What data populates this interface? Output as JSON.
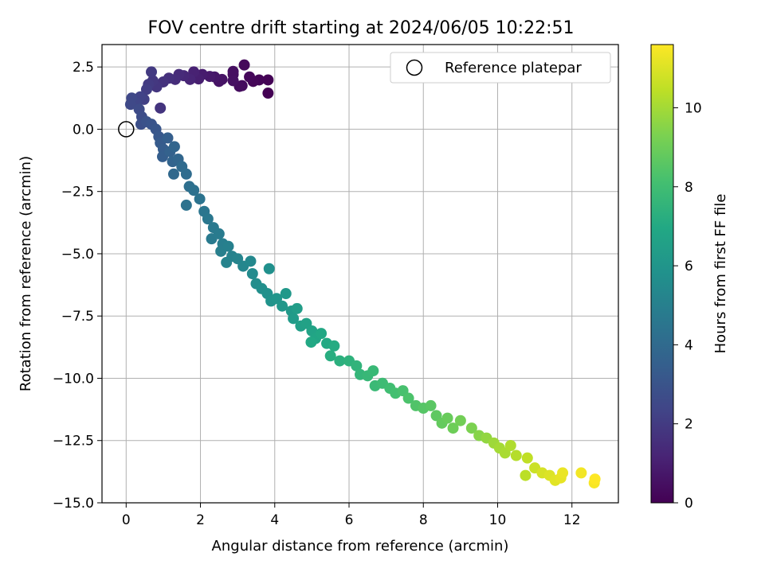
{
  "chart_data": {
    "type": "scatter",
    "title": "FOV centre drift starting at 2024/06/05 10:22:51",
    "xlabel": "Angular distance from reference (arcmin)",
    "ylabel": "Rotation from reference (arcmin)",
    "xlim": [
      -0.65,
      13.25
    ],
    "ylim": [
      -15.0,
      3.4
    ],
    "xticks": [
      0,
      2,
      4,
      6,
      8,
      10,
      12
    ],
    "yticks": [
      2.5,
      0.0,
      -2.5,
      -5.0,
      -7.5,
      -10.0,
      -12.5,
      -15.0
    ],
    "xtick_labels": [
      "0",
      "2",
      "4",
      "6",
      "8",
      "10",
      "12"
    ],
    "ytick_labels": [
      "2.5",
      "0.0",
      "−2.5",
      "−5.0",
      "−7.5",
      "−10.0",
      "−12.5",
      "−15.0"
    ],
    "grid": true,
    "legend": {
      "label": "Reference platepar",
      "placement": "top-right"
    },
    "reference_point": {
      "x": 0.0,
      "y": 0.0
    },
    "colorbar": {
      "label": "Hours from first FF file",
      "colormap": "viridis",
      "range": [
        0,
        11.6
      ],
      "ticks": [
        0,
        2,
        4,
        6,
        8,
        10
      ],
      "tick_labels": [
        "0",
        "2",
        "4",
        "6",
        "8",
        "10"
      ]
    },
    "series": [
      {
        "points": [
          {
            "x": 3.82,
            "y": 1.45,
            "t": 0.0
          },
          {
            "x": 3.82,
            "y": 1.98,
            "t": 0.05
          },
          {
            "x": 3.58,
            "y": 1.98,
            "t": 0.1
          },
          {
            "x": 3.42,
            "y": 1.92,
            "t": 0.15
          },
          {
            "x": 3.32,
            "y": 2.1,
            "t": 0.2
          },
          {
            "x": 3.18,
            "y": 2.58,
            "t": 0.25
          },
          {
            "x": 3.12,
            "y": 1.75,
            "t": 0.3
          },
          {
            "x": 3.05,
            "y": 1.72,
            "t": 0.35
          },
          {
            "x": 2.88,
            "y": 2.2,
            "t": 0.4
          },
          {
            "x": 2.88,
            "y": 2.32,
            "t": 0.45
          },
          {
            "x": 2.88,
            "y": 1.95,
            "t": 0.5
          },
          {
            "x": 2.58,
            "y": 2.0,
            "t": 0.55
          },
          {
            "x": 2.5,
            "y": 1.92,
            "t": 0.6
          },
          {
            "x": 2.38,
            "y": 2.1,
            "t": 0.7
          },
          {
            "x": 2.25,
            "y": 2.12,
            "t": 0.8
          },
          {
            "x": 2.05,
            "y": 2.2,
            "t": 0.9
          },
          {
            "x": 1.95,
            "y": 2.02,
            "t": 1.0
          },
          {
            "x": 1.82,
            "y": 2.3,
            "t": 1.1
          },
          {
            "x": 1.72,
            "y": 2.0,
            "t": 1.2
          },
          {
            "x": 1.55,
            "y": 2.15,
            "t": 1.3
          },
          {
            "x": 1.42,
            "y": 2.2,
            "t": 1.4
          },
          {
            "x": 1.32,
            "y": 2.0,
            "t": 1.5
          },
          {
            "x": 1.15,
            "y": 2.05,
            "t": 1.6
          },
          {
            "x": 1.0,
            "y": 1.9,
            "t": 1.7
          },
          {
            "x": 0.92,
            "y": 0.85,
            "t": 1.75
          },
          {
            "x": 0.82,
            "y": 1.7,
            "t": 1.8
          },
          {
            "x": 0.72,
            "y": 1.95,
            "t": 1.9
          },
          {
            "x": 0.68,
            "y": 2.3,
            "t": 1.95
          },
          {
            "x": 0.6,
            "y": 1.8,
            "t": 2.0
          },
          {
            "x": 0.55,
            "y": 1.6,
            "t": 2.1
          },
          {
            "x": 0.48,
            "y": 1.2,
            "t": 2.2
          },
          {
            "x": 0.38,
            "y": 1.3,
            "t": 2.3
          },
          {
            "x": 0.28,
            "y": 1.05,
            "t": 2.4
          },
          {
            "x": 0.15,
            "y": 1.25,
            "t": 2.5
          },
          {
            "x": 0.12,
            "y": 1.0,
            "t": 2.55
          },
          {
            "x": 0.35,
            "y": 0.8,
            "t": 2.6
          },
          {
            "x": 0.42,
            "y": 0.5,
            "t": 2.7
          },
          {
            "x": 0.4,
            "y": 0.2,
            "t": 2.8
          },
          {
            "x": 0.55,
            "y": 0.3,
            "t": 2.9
          },
          {
            "x": 0.68,
            "y": 0.2,
            "t": 3.0
          },
          {
            "x": 0.8,
            "y": 0.0,
            "t": 3.1
          },
          {
            "x": 0.88,
            "y": -0.3,
            "t": 3.2
          },
          {
            "x": 0.92,
            "y": -0.55,
            "t": 3.3
          },
          {
            "x": 1.0,
            "y": -0.8,
            "t": 3.4
          },
          {
            "x": 0.98,
            "y": -1.1,
            "t": 3.45
          },
          {
            "x": 1.12,
            "y": -0.35,
            "t": 3.5
          },
          {
            "x": 1.18,
            "y": -0.9,
            "t": 3.6
          },
          {
            "x": 1.25,
            "y": -1.3,
            "t": 3.7
          },
          {
            "x": 1.3,
            "y": -0.7,
            "t": 3.75
          },
          {
            "x": 1.4,
            "y": -1.2,
            "t": 3.8
          },
          {
            "x": 1.28,
            "y": -1.8,
            "t": 3.9
          },
          {
            "x": 1.5,
            "y": -1.5,
            "t": 4.0
          },
          {
            "x": 1.62,
            "y": -1.8,
            "t": 4.1
          },
          {
            "x": 1.7,
            "y": -2.3,
            "t": 4.2
          },
          {
            "x": 1.82,
            "y": -2.45,
            "t": 4.3
          },
          {
            "x": 1.62,
            "y": -3.05,
            "t": 4.35
          },
          {
            "x": 1.98,
            "y": -2.8,
            "t": 4.4
          },
          {
            "x": 2.1,
            "y": -3.3,
            "t": 4.5
          },
          {
            "x": 2.2,
            "y": -3.6,
            "t": 4.6
          },
          {
            "x": 2.35,
            "y": -3.95,
            "t": 4.7
          },
          {
            "x": 2.3,
            "y": -4.4,
            "t": 4.75
          },
          {
            "x": 2.5,
            "y": -4.2,
            "t": 4.8
          },
          {
            "x": 2.6,
            "y": -4.6,
            "t": 4.9
          },
          {
            "x": 2.55,
            "y": -4.9,
            "t": 4.95
          },
          {
            "x": 2.75,
            "y": -4.7,
            "t": 5.0
          },
          {
            "x": 2.85,
            "y": -5.1,
            "t": 5.1
          },
          {
            "x": 2.7,
            "y": -5.35,
            "t": 5.15
          },
          {
            "x": 3.0,
            "y": -5.2,
            "t": 5.2
          },
          {
            "x": 3.15,
            "y": -5.5,
            "t": 5.3
          },
          {
            "x": 3.35,
            "y": -5.3,
            "t": 5.4
          },
          {
            "x": 3.4,
            "y": -5.8,
            "t": 5.5
          },
          {
            "x": 3.5,
            "y": -6.2,
            "t": 5.6
          },
          {
            "x": 3.65,
            "y": -6.4,
            "t": 5.7
          },
          {
            "x": 3.85,
            "y": -5.6,
            "t": 5.75
          },
          {
            "x": 3.8,
            "y": -6.6,
            "t": 5.8
          },
          {
            "x": 3.9,
            "y": -6.9,
            "t": 5.9
          },
          {
            "x": 4.05,
            "y": -6.8,
            "t": 6.0
          },
          {
            "x": 4.2,
            "y": -7.1,
            "t": 6.1
          },
          {
            "x": 4.3,
            "y": -6.6,
            "t": 6.15
          },
          {
            "x": 4.45,
            "y": -7.3,
            "t": 6.2
          },
          {
            "x": 4.5,
            "y": -7.6,
            "t": 6.3
          },
          {
            "x": 4.6,
            "y": -7.2,
            "t": 6.4
          },
          {
            "x": 4.7,
            "y": -7.9,
            "t": 6.5
          },
          {
            "x": 4.85,
            "y": -7.8,
            "t": 6.6
          },
          {
            "x": 5.0,
            "y": -8.1,
            "t": 6.7
          },
          {
            "x": 5.1,
            "y": -8.4,
            "t": 6.8
          },
          {
            "x": 5.25,
            "y": -8.2,
            "t": 6.9
          },
          {
            "x": 4.98,
            "y": -8.55,
            "t": 6.95
          },
          {
            "x": 5.4,
            "y": -8.6,
            "t": 7.0
          },
          {
            "x": 5.6,
            "y": -8.7,
            "t": 7.1
          },
          {
            "x": 5.5,
            "y": -9.1,
            "t": 7.2
          },
          {
            "x": 5.75,
            "y": -9.3,
            "t": 7.3
          },
          {
            "x": 6.0,
            "y": -9.3,
            "t": 7.4
          },
          {
            "x": 6.2,
            "y": -9.5,
            "t": 7.5
          },
          {
            "x": 6.3,
            "y": -9.85,
            "t": 7.6
          },
          {
            "x": 6.5,
            "y": -9.9,
            "t": 7.7
          },
          {
            "x": 6.65,
            "y": -9.7,
            "t": 7.75
          },
          {
            "x": 6.7,
            "y": -10.3,
            "t": 7.8
          },
          {
            "x": 6.9,
            "y": -10.2,
            "t": 7.9
          },
          {
            "x": 7.1,
            "y": -10.4,
            "t": 8.0
          },
          {
            "x": 7.25,
            "y": -10.6,
            "t": 8.1
          },
          {
            "x": 7.45,
            "y": -10.5,
            "t": 8.2
          },
          {
            "x": 7.6,
            "y": -10.8,
            "t": 8.3
          },
          {
            "x": 7.8,
            "y": -11.1,
            "t": 8.4
          },
          {
            "x": 8.0,
            "y": -11.2,
            "t": 8.5
          },
          {
            "x": 8.2,
            "y": -11.1,
            "t": 8.6
          },
          {
            "x": 8.35,
            "y": -11.5,
            "t": 8.7
          },
          {
            "x": 8.5,
            "y": -11.8,
            "t": 8.8
          },
          {
            "x": 8.65,
            "y": -11.6,
            "t": 8.9
          },
          {
            "x": 8.8,
            "y": -12.0,
            "t": 9.0
          },
          {
            "x": 9.0,
            "y": -11.7,
            "t": 9.1
          },
          {
            "x": 9.3,
            "y": -12.0,
            "t": 9.3
          },
          {
            "x": 9.5,
            "y": -12.3,
            "t": 9.5
          },
          {
            "x": 9.7,
            "y": -12.4,
            "t": 9.7
          },
          {
            "x": 9.9,
            "y": -12.6,
            "t": 9.9
          },
          {
            "x": 10.05,
            "y": -12.8,
            "t": 10.0
          },
          {
            "x": 10.2,
            "y": -13.0,
            "t": 10.1
          },
          {
            "x": 10.35,
            "y": -12.7,
            "t": 10.2
          },
          {
            "x": 10.5,
            "y": -13.1,
            "t": 10.3
          },
          {
            "x": 10.75,
            "y": -13.9,
            "t": 10.4
          },
          {
            "x": 10.8,
            "y": -13.2,
            "t": 10.5
          },
          {
            "x": 11.0,
            "y": -13.6,
            "t": 10.7
          },
          {
            "x": 11.2,
            "y": -13.8,
            "t": 10.9
          },
          {
            "x": 11.4,
            "y": -13.9,
            "t": 11.0
          },
          {
            "x": 11.55,
            "y": -14.1,
            "t": 11.1
          },
          {
            "x": 11.7,
            "y": -14.0,
            "t": 11.2
          },
          {
            "x": 11.75,
            "y": -13.8,
            "t": 11.25
          },
          {
            "x": 12.25,
            "y": -13.8,
            "t": 11.4
          },
          {
            "x": 12.6,
            "y": -14.2,
            "t": 11.5
          },
          {
            "x": 12.62,
            "y": -14.05,
            "t": 11.6
          }
        ]
      }
    ]
  }
}
